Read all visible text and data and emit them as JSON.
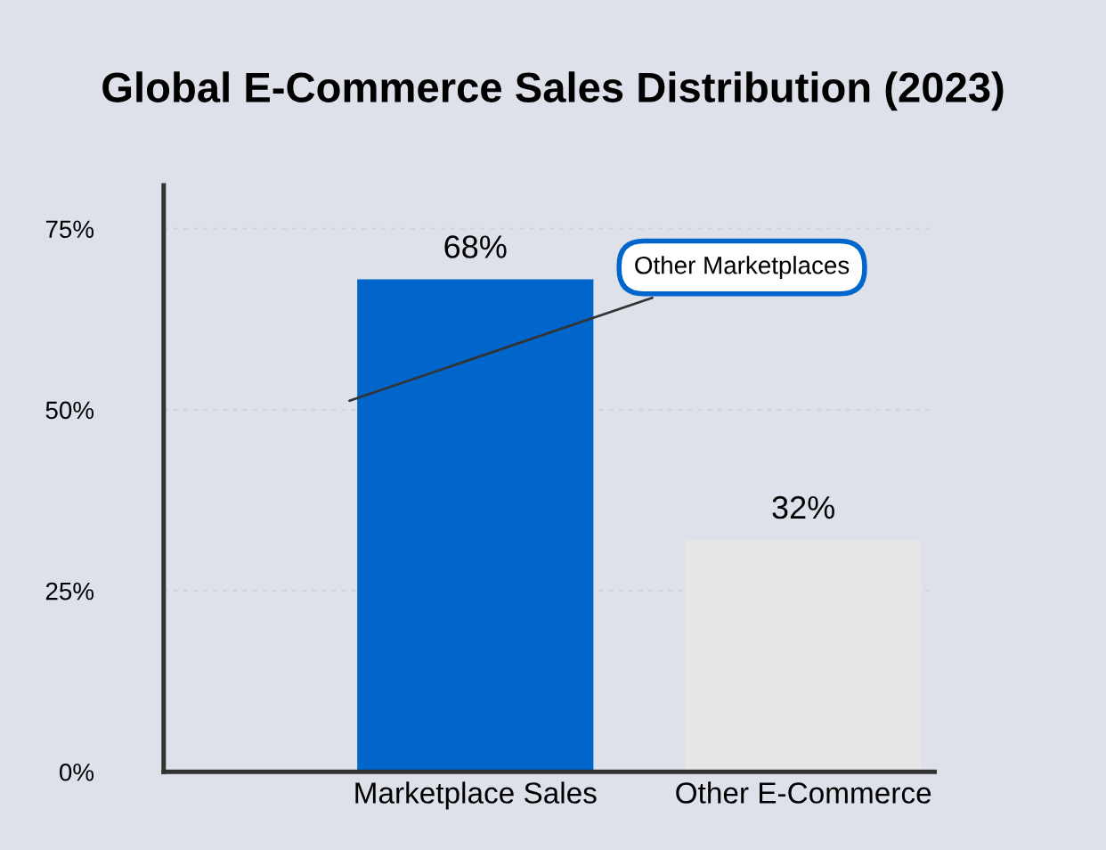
{
  "chart_data": {
    "type": "bar",
    "title": "Global E-Commerce Sales Distribution (2023)",
    "categories": [
      "Marketplace Sales",
      "Other E-Commerce"
    ],
    "values": [
      68,
      32
    ],
    "colors": [
      "#0066cc",
      "#e6e6e6"
    ],
    "value_labels": [
      "68%",
      "32%"
    ],
    "ylim": [
      0,
      81
    ],
    "yticks": [
      {
        "value": 0,
        "label": "0%"
      },
      {
        "value": 25,
        "label": "25%"
      },
      {
        "value": 50,
        "label": "50%"
      },
      {
        "value": 75,
        "label": "75%"
      }
    ],
    "grid": "y",
    "annotations": [
      "Other Marketplaces"
    ]
  }
}
